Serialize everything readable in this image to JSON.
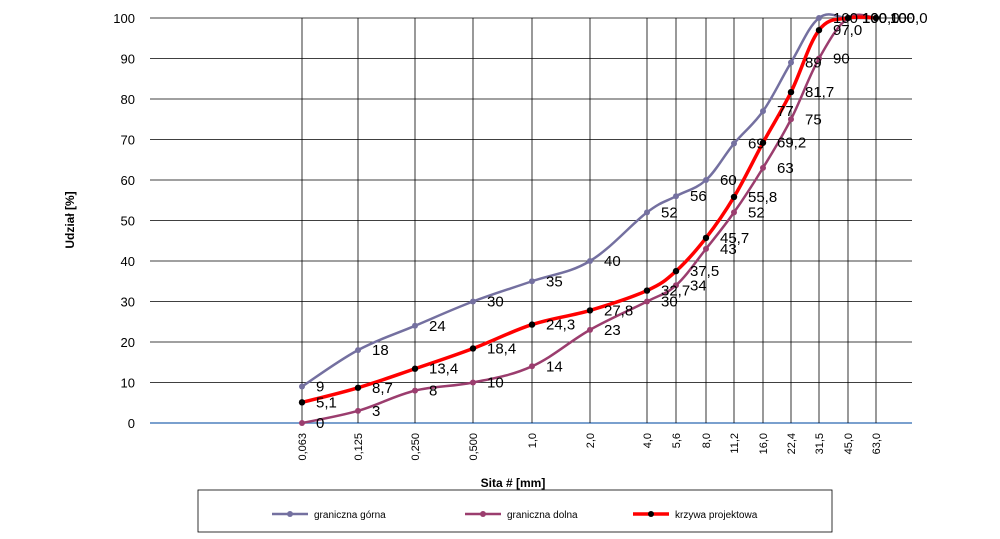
{
  "chart_data": {
    "type": "line",
    "title": "",
    "xlabel": "Sita # [mm]",
    "ylabel": "Udział [%]",
    "ylim": [
      0,
      100
    ],
    "yticks": [
      "0",
      "10",
      "20",
      "30",
      "40",
      "50",
      "60",
      "70",
      "80",
      "90",
      "100"
    ],
    "categories": [
      "0,063",
      "0,125",
      "0,250",
      "0,500",
      "1,0",
      "2,0",
      "4,0",
      "5,6",
      "8,0",
      "11,2",
      "16,0",
      "22,4",
      "31,5",
      "45,0",
      "63,0"
    ],
    "grid": true,
    "legend_position": "bottom",
    "series": [
      {
        "name": "graniczna górna",
        "color": "#7470a0",
        "values": [
          9,
          18,
          24,
          30,
          35,
          40,
          52,
          56,
          60,
          69,
          77,
          89,
          100,
          100,
          100
        ],
        "labels": [
          "9",
          "18",
          "24",
          "30",
          "35",
          "40",
          "52",
          "56",
          "60",
          "69",
          "77",
          "89",
          "100",
          "100",
          "100"
        ]
      },
      {
        "name": "graniczna dolna",
        "color": "#9b3d6e",
        "values": [
          0,
          3,
          8,
          10,
          14,
          23,
          30,
          34,
          43,
          52,
          63,
          75,
          90,
          100,
          100
        ],
        "labels": [
          "0",
          "3",
          "8",
          "10",
          "14",
          "23",
          "30",
          "34",
          "43",
          "52",
          "63",
          "75",
          "90",
          "100",
          "100"
        ]
      },
      {
        "name": "krzywa projektowa",
        "color": "#ff0000",
        "values": [
          5.1,
          8.7,
          13.4,
          18.4,
          24.3,
          27.8,
          32.7,
          37.5,
          45.7,
          55.8,
          69.2,
          81.7,
          97.0,
          100.0,
          100.0
        ],
        "labels": [
          "5,1",
          "8,7",
          "13,4",
          "18,4",
          "24,3",
          "27,8",
          "32,7",
          "37,5",
          "45,7",
          "55,8",
          "69,2",
          "81,7",
          "97,0",
          "100,0",
          "100,0"
        ]
      }
    ]
  }
}
